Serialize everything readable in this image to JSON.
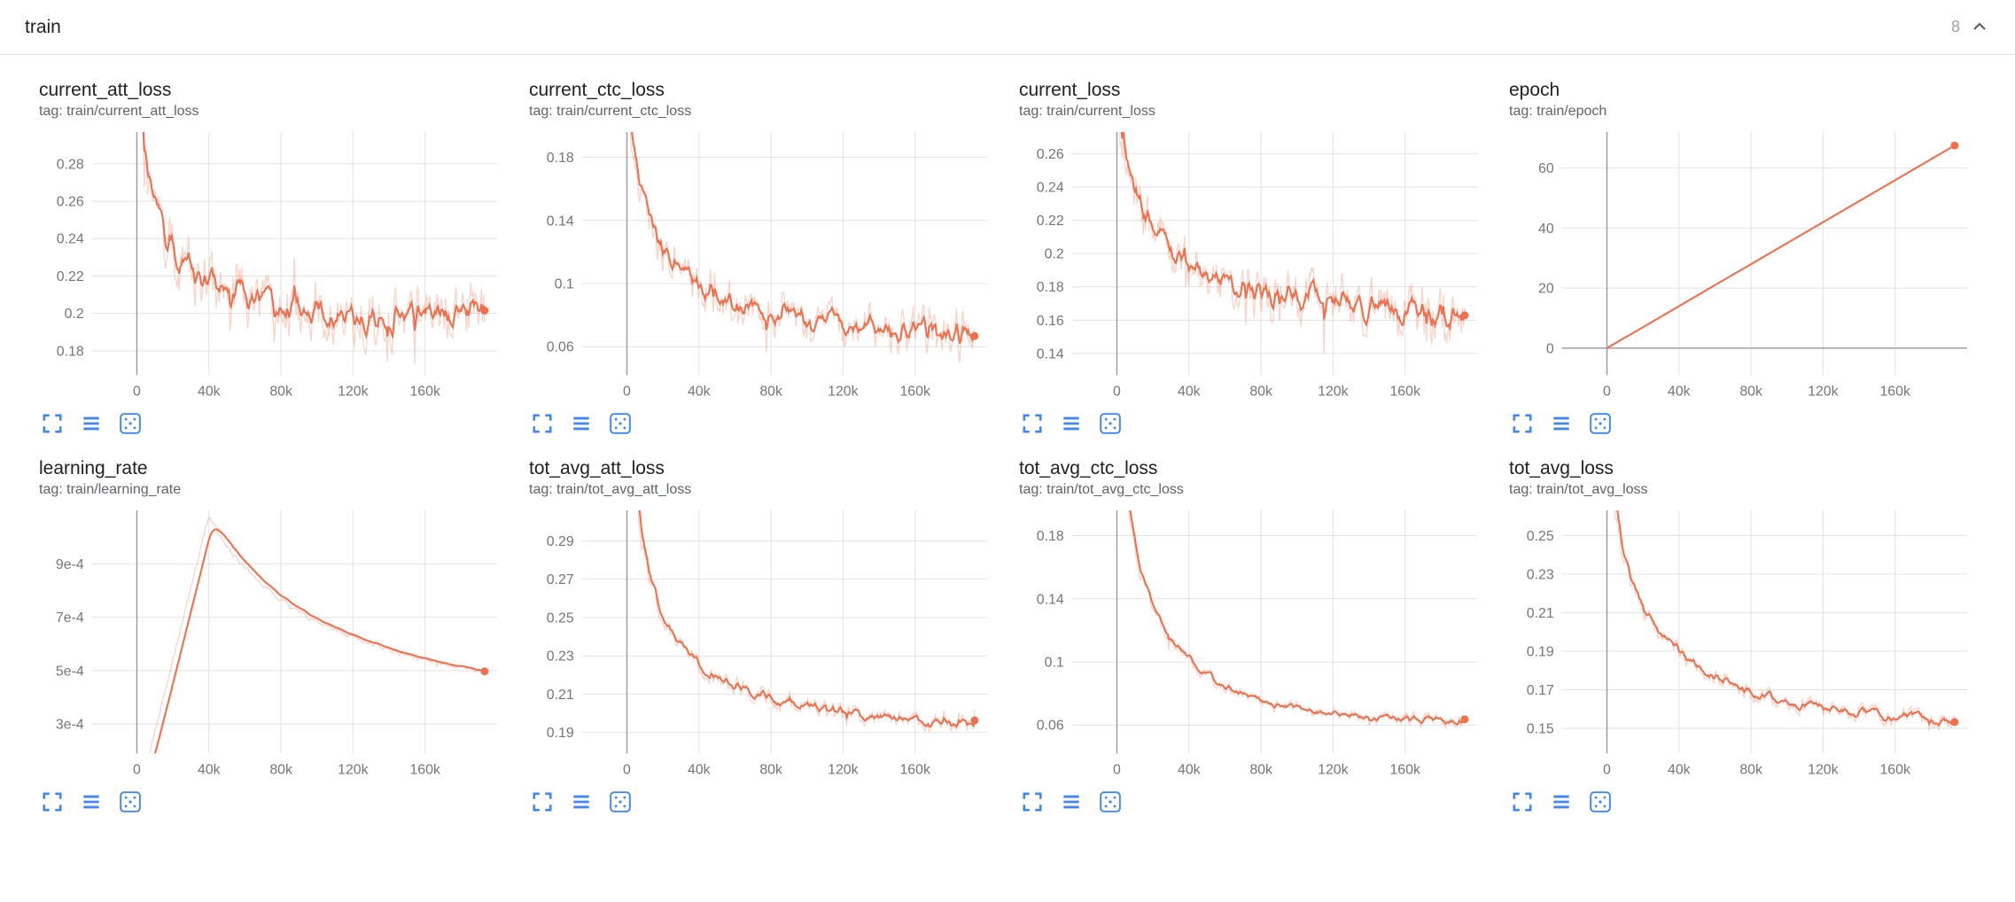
{
  "header": {
    "title": "train",
    "count": "8",
    "collapse_icon": "chevron-up-icon"
  },
  "colors": {
    "accent": "#f0704e",
    "raw_opacity": 0.3,
    "icon_blue": "#4285f4",
    "grid": "#e2e2e2",
    "zero_line": "#999999",
    "tick_text": "#757575"
  },
  "card_toolbar": {
    "icons": [
      "expand-icon",
      "data-table-icon",
      "fit-domain-icon"
    ]
  },
  "chart_data": [
    {
      "type": "line",
      "title": "current_att_loss",
      "tag": "tag: train/current_att_loss",
      "x_domain": [
        -25000,
        200000
      ],
      "y_domain": [
        0.167,
        0.297
      ],
      "x_ticks": [
        {
          "v": 0,
          "label": "0"
        },
        {
          "v": 40000,
          "label": "40k"
        },
        {
          "v": 80000,
          "label": "80k"
        },
        {
          "v": 120000,
          "label": "120k"
        },
        {
          "v": 160000,
          "label": "160k"
        }
      ],
      "y_ticks": [
        {
          "v": 0.18,
          "label": "0.18"
        },
        {
          "v": 0.2,
          "label": "0.2"
        },
        {
          "v": 0.22,
          "label": "0.22"
        },
        {
          "v": 0.24,
          "label": "0.24"
        },
        {
          "v": 0.26,
          "label": "0.26"
        },
        {
          "v": 0.28,
          "label": "0.28"
        }
      ],
      "trend": [
        [
          0,
          0.315
        ],
        [
          2000,
          0.298
        ],
        [
          5000,
          0.276
        ],
        [
          8000,
          0.261
        ],
        [
          12000,
          0.248
        ],
        [
          16000,
          0.239
        ],
        [
          20000,
          0.233
        ],
        [
          26000,
          0.2265
        ],
        [
          32000,
          0.2215
        ],
        [
          40000,
          0.2165
        ],
        [
          50000,
          0.2125
        ],
        [
          60000,
          0.2095
        ],
        [
          75000,
          0.2065
        ],
        [
          90000,
          0.2045
        ],
        [
          110000,
          0.2025
        ],
        [
          130000,
          0.2015
        ],
        [
          150000,
          0.2005
        ],
        [
          170000,
          0.2005
        ],
        [
          185000,
          0.201
        ],
        [
          193000,
          0.202
        ]
      ],
      "last_value": 0.202,
      "noise": 0.009,
      "smoothing": 0.6,
      "seed": 11
    },
    {
      "type": "line",
      "title": "current_ctc_loss",
      "tag": "tag: train/current_ctc_loss",
      "x_domain": [
        -25000,
        200000
      ],
      "y_domain": [
        0.042,
        0.196
      ],
      "x_ticks": [
        {
          "v": 0,
          "label": "0"
        },
        {
          "v": 40000,
          "label": "40k"
        },
        {
          "v": 80000,
          "label": "80k"
        },
        {
          "v": 120000,
          "label": "120k"
        },
        {
          "v": 160000,
          "label": "160k"
        }
      ],
      "y_ticks": [
        {
          "v": 0.06,
          "label": "0.06"
        },
        {
          "v": 0.1,
          "label": "0.1"
        },
        {
          "v": 0.14,
          "label": "0.14"
        },
        {
          "v": 0.18,
          "label": "0.18"
        }
      ],
      "trend": [
        [
          0,
          0.225
        ],
        [
          3000,
          0.192
        ],
        [
          6000,
          0.168
        ],
        [
          10000,
          0.149
        ],
        [
          14000,
          0.137
        ],
        [
          18000,
          0.1265
        ],
        [
          24000,
          0.1155
        ],
        [
          30000,
          0.1075
        ],
        [
          40000,
          0.0985
        ],
        [
          50000,
          0.0925
        ],
        [
          62000,
          0.0875
        ],
        [
          75000,
          0.0835
        ],
        [
          90000,
          0.0795
        ],
        [
          110000,
          0.0755
        ],
        [
          130000,
          0.0725
        ],
        [
          150000,
          0.0705
        ],
        [
          170000,
          0.0685
        ],
        [
          185000,
          0.0675
        ],
        [
          193000,
          0.068
        ]
      ],
      "last_value": 0.068,
      "noise": 0.008,
      "smoothing": 0.6,
      "seed": 22
    },
    {
      "type": "line",
      "title": "current_loss",
      "tag": "tag: train/current_loss",
      "x_domain": [
        -25000,
        200000
      ],
      "y_domain": [
        0.127,
        0.273
      ],
      "x_ticks": [
        {
          "v": 0,
          "label": "0"
        },
        {
          "v": 40000,
          "label": "40k"
        },
        {
          "v": 80000,
          "label": "80k"
        },
        {
          "v": 120000,
          "label": "120k"
        },
        {
          "v": 160000,
          "label": "160k"
        }
      ],
      "y_ticks": [
        {
          "v": 0.14,
          "label": "0.14"
        },
        {
          "v": 0.16,
          "label": "0.16"
        },
        {
          "v": 0.18,
          "label": "0.18"
        },
        {
          "v": 0.2,
          "label": "0.2"
        },
        {
          "v": 0.22,
          "label": "0.22"
        },
        {
          "v": 0.24,
          "label": "0.24"
        },
        {
          "v": 0.26,
          "label": "0.26"
        }
      ],
      "trend": [
        [
          0,
          0.292
        ],
        [
          3000,
          0.268
        ],
        [
          6000,
          0.249
        ],
        [
          10000,
          0.2335
        ],
        [
          15000,
          0.2205
        ],
        [
          20000,
          0.2125
        ],
        [
          27000,
          0.2045
        ],
        [
          35000,
          0.1975
        ],
        [
          45000,
          0.1915
        ],
        [
          55000,
          0.1865
        ],
        [
          70000,
          0.1815
        ],
        [
          85000,
          0.1775
        ],
        [
          100000,
          0.1745
        ],
        [
          120000,
          0.1705
        ],
        [
          140000,
          0.1675
        ],
        [
          160000,
          0.1655
        ],
        [
          180000,
          0.164
        ],
        [
          193000,
          0.1635
        ]
      ],
      "last_value": 0.163,
      "noise": 0.009,
      "smoothing": 0.6,
      "seed": 33
    },
    {
      "type": "line",
      "title": "epoch",
      "tag": "tag: train/epoch",
      "x_domain": [
        -25000,
        200000
      ],
      "y_domain": [
        -9,
        72
      ],
      "x_ticks": [
        {
          "v": 0,
          "label": "0"
        },
        {
          "v": 40000,
          "label": "40k"
        },
        {
          "v": 80000,
          "label": "80k"
        },
        {
          "v": 120000,
          "label": "120k"
        },
        {
          "v": 160000,
          "label": "160k"
        }
      ],
      "y_ticks": [
        {
          "v": 0,
          "label": "0"
        },
        {
          "v": 20,
          "label": "20"
        },
        {
          "v": 40,
          "label": "40"
        },
        {
          "v": 60,
          "label": "60"
        }
      ],
      "trend": [
        [
          0,
          0
        ],
        [
          193000,
          67.5
        ]
      ],
      "last_value": 67.5,
      "noise": 0,
      "smoothing": 0,
      "seed": 44
    },
    {
      "type": "line",
      "title": "learning_rate",
      "tag": "tag: train/learning_rate",
      "x_domain": [
        -25000,
        200000
      ],
      "y_domain": [
        0.00019,
        0.0011
      ],
      "x_ticks": [
        {
          "v": 0,
          "label": "0"
        },
        {
          "v": 40000,
          "label": "40k"
        },
        {
          "v": 80000,
          "label": "80k"
        },
        {
          "v": 120000,
          "label": "120k"
        },
        {
          "v": 160000,
          "label": "160k"
        }
      ],
      "y_ticks": [
        {
          "v": 0.0003,
          "label": "3e-4"
        },
        {
          "v": 0.0005,
          "label": "5e-4"
        },
        {
          "v": 0.0007,
          "label": "7e-4"
        },
        {
          "v": 0.0009,
          "label": "9e-4"
        }
      ],
      "trend": [
        [
          0,
          0.0
        ],
        [
          4000,
          0.000108
        ],
        [
          8000,
          0.000216
        ],
        [
          12000,
          0.000324
        ],
        [
          16000,
          0.000432
        ],
        [
          20000,
          0.00054
        ],
        [
          24000,
          0.000648
        ],
        [
          28000,
          0.000756
        ],
        [
          32000,
          0.000864
        ],
        [
          36000,
          0.000972
        ],
        [
          40000,
          0.00108
        ],
        [
          45000,
          0.001018
        ],
        [
          50000,
          0.000966
        ],
        [
          55000,
          0.000921
        ],
        [
          60000,
          0.000882
        ],
        [
          70000,
          0.000816
        ],
        [
          80000,
          0.000764
        ],
        [
          90000,
          0.00072
        ],
        [
          100000,
          0.000683
        ],
        [
          110000,
          0.000651
        ],
        [
          120000,
          0.000624
        ],
        [
          130000,
          0.000599
        ],
        [
          140000,
          0.000577
        ],
        [
          150000,
          0.000558
        ],
        [
          160000,
          0.00054
        ],
        [
          170000,
          0.000524
        ],
        [
          180000,
          0.000509
        ],
        [
          190000,
          0.000496
        ],
        [
          193000,
          0.000492
        ]
      ],
      "last_value": 0.000492,
      "noise": 4.5e-06,
      "smoothing": 0.85,
      "seed": 55
    },
    {
      "type": "line",
      "title": "tot_avg_att_loss",
      "tag": "tag: train/tot_avg_att_loss",
      "x_domain": [
        -25000,
        200000
      ],
      "y_domain": [
        0.179,
        0.306
      ],
      "x_ticks": [
        {
          "v": 0,
          "label": "0"
        },
        {
          "v": 40000,
          "label": "40k"
        },
        {
          "v": 80000,
          "label": "80k"
        },
        {
          "v": 120000,
          "label": "120k"
        },
        {
          "v": 160000,
          "label": "160k"
        }
      ],
      "y_ticks": [
        {
          "v": 0.19,
          "label": "0.19"
        },
        {
          "v": 0.21,
          "label": "0.21"
        },
        {
          "v": 0.23,
          "label": "0.23"
        },
        {
          "v": 0.25,
          "label": "0.25"
        },
        {
          "v": 0.27,
          "label": "0.27"
        },
        {
          "v": 0.29,
          "label": "0.29"
        }
      ],
      "trend": [
        [
          0,
          0.42
        ],
        [
          3000,
          0.345
        ],
        [
          5000,
          0.316
        ],
        [
          7000,
          0.298
        ],
        [
          9000,
          0.285
        ],
        [
          12000,
          0.271
        ],
        [
          15000,
          0.261
        ],
        [
          18000,
          0.2535
        ],
        [
          22000,
          0.2455
        ],
        [
          26000,
          0.2395
        ],
        [
          30000,
          0.2345
        ],
        [
          36000,
          0.2285
        ],
        [
          42000,
          0.2235
        ],
        [
          50000,
          0.2185
        ],
        [
          58000,
          0.2148
        ],
        [
          66000,
          0.2118
        ],
        [
          75000,
          0.2092
        ],
        [
          85000,
          0.2068
        ],
        [
          95000,
          0.2048
        ],
        [
          105000,
          0.2032
        ],
        [
          118000,
          0.2013
        ],
        [
          130000,
          0.199
        ],
        [
          142000,
          0.1978
        ],
        [
          155000,
          0.1966
        ],
        [
          168000,
          0.1956
        ],
        [
          180000,
          0.1947
        ],
        [
          188000,
          0.1941
        ],
        [
          193000,
          0.1936
        ]
      ],
      "last_value": 0.194,
      "noise": 0.0026,
      "smoothing": 0.6,
      "seed": 66
    },
    {
      "type": "line",
      "title": "tot_avg_ctc_loss",
      "tag": "tag: train/tot_avg_ctc_loss",
      "x_domain": [
        -25000,
        200000
      ],
      "y_domain": [
        0.042,
        0.196
      ],
      "x_ticks": [
        {
          "v": 0,
          "label": "0"
        },
        {
          "v": 40000,
          "label": "40k"
        },
        {
          "v": 80000,
          "label": "80k"
        },
        {
          "v": 120000,
          "label": "120k"
        },
        {
          "v": 160000,
          "label": "160k"
        }
      ],
      "y_ticks": [
        {
          "v": 0.06,
          "label": "0.06"
        },
        {
          "v": 0.1,
          "label": "0.1"
        },
        {
          "v": 0.14,
          "label": "0.14"
        },
        {
          "v": 0.18,
          "label": "0.18"
        }
      ],
      "trend": [
        [
          0,
          0.3
        ],
        [
          3000,
          0.235
        ],
        [
          5000,
          0.208
        ],
        [
          7000,
          0.19
        ],
        [
          9000,
          0.176
        ],
        [
          12000,
          0.16
        ],
        [
          15000,
          0.148
        ],
        [
          18000,
          0.139
        ],
        [
          22000,
          0.129
        ],
        [
          26000,
          0.121
        ],
        [
          30000,
          0.1145
        ],
        [
          35000,
          0.1075
        ],
        [
          40000,
          0.1015
        ],
        [
          46000,
          0.095
        ],
        [
          52000,
          0.09
        ],
        [
          58000,
          0.086
        ],
        [
          65000,
          0.082
        ],
        [
          72000,
          0.0785
        ],
        [
          80000,
          0.075
        ],
        [
          90000,
          0.072
        ],
        [
          100000,
          0.0698
        ],
        [
          112000,
          0.0678
        ],
        [
          125000,
          0.0662
        ],
        [
          140000,
          0.065
        ],
        [
          155000,
          0.064
        ],
        [
          170000,
          0.0632
        ],
        [
          182000,
          0.0626
        ],
        [
          193000,
          0.062
        ]
      ],
      "last_value": 0.062,
      "noise": 0.0022,
      "smoothing": 0.6,
      "seed": 77
    },
    {
      "type": "line",
      "title": "tot_avg_loss",
      "tag": "tag: train/tot_avg_loss",
      "x_domain": [
        -25000,
        200000
      ],
      "y_domain": [
        0.137,
        0.263
      ],
      "x_ticks": [
        {
          "v": 0,
          "label": "0"
        },
        {
          "v": 40000,
          "label": "40k"
        },
        {
          "v": 80000,
          "label": "80k"
        },
        {
          "v": 120000,
          "label": "120k"
        },
        {
          "v": 160000,
          "label": "160k"
        }
      ],
      "y_ticks": [
        {
          "v": 0.15,
          "label": "0.15"
        },
        {
          "v": 0.17,
          "label": "0.17"
        },
        {
          "v": 0.19,
          "label": "0.19"
        },
        {
          "v": 0.21,
          "label": "0.21"
        },
        {
          "v": 0.23,
          "label": "0.23"
        },
        {
          "v": 0.25,
          "label": "0.25"
        }
      ],
      "trend": [
        [
          0,
          0.36
        ],
        [
          4000,
          0.266
        ],
        [
          6000,
          0.252
        ],
        [
          8000,
          0.242
        ],
        [
          10000,
          0.2345
        ],
        [
          13000,
          0.2258
        ],
        [
          16000,
          0.2188
        ],
        [
          20000,
          0.2113
        ],
        [
          25000,
          0.2043
        ],
        [
          30000,
          0.1988
        ],
        [
          36000,
          0.1928
        ],
        [
          42000,
          0.1878
        ],
        [
          50000,
          0.1822
        ],
        [
          58000,
          0.1778
        ],
        [
          66000,
          0.1742
        ],
        [
          75000,
          0.1708
        ],
        [
          85000,
          0.1678
        ],
        [
          95000,
          0.1652
        ],
        [
          105000,
          0.1632
        ],
        [
          118000,
          0.161
        ],
        [
          130000,
          0.1593
        ],
        [
          142000,
          0.1578
        ],
        [
          155000,
          0.1566
        ],
        [
          168000,
          0.1556
        ],
        [
          180000,
          0.1547
        ],
        [
          188000,
          0.1542
        ],
        [
          193000,
          0.1537
        ]
      ],
      "last_value": 0.154,
      "noise": 0.0026,
      "smoothing": 0.6,
      "seed": 88
    }
  ]
}
